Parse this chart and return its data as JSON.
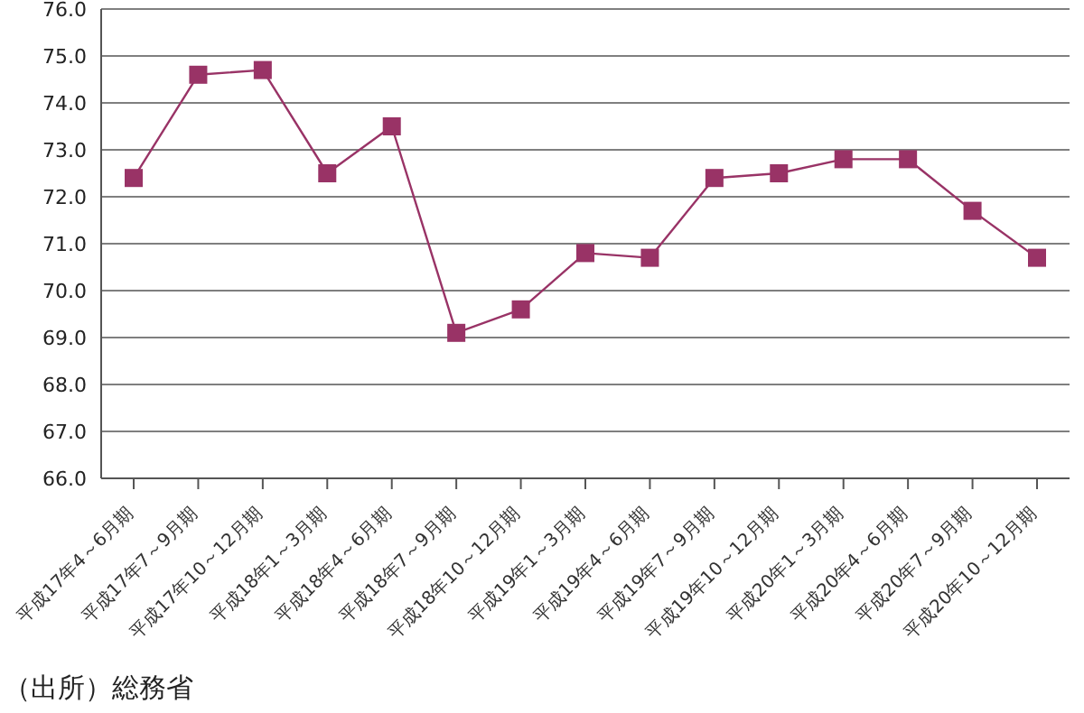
{
  "chart_data": {
    "type": "line",
    "categories": [
      "平成17年4～6月期",
      "平成17年7～9月期",
      "平成17年10～12月期",
      "平成18年1～3月期",
      "平成18年4～6月期",
      "平成18年7～9月期",
      "平成18年10～12月期",
      "平成19年1～3月期",
      "平成19年4～6月期",
      "平成19年7～9月期",
      "平成19年10～12月期",
      "平成20年1～3月期",
      "平成20年4～6月期",
      "平成20年7～9月期",
      "平成20年10～12月期"
    ],
    "series": [
      {
        "color": "#993366",
        "values": [
          72.4,
          74.6,
          74.7,
          72.5,
          73.5,
          69.1,
          69.6,
          70.8,
          70.7,
          72.4,
          72.5,
          72.8,
          72.8,
          71.7,
          70.7
        ]
      }
    ],
    "ylim": [
      66,
      76
    ],
    "yticks": [
      {
        "value": 66,
        "label": "66.0"
      },
      {
        "value": 67,
        "label": "67.0"
      },
      {
        "value": 68,
        "label": "68.0"
      },
      {
        "value": 69,
        "label": "69.0"
      },
      {
        "value": 70,
        "label": "70.0"
      },
      {
        "value": 71,
        "label": "71.0"
      },
      {
        "value": 72,
        "label": "72.0"
      },
      {
        "value": 73,
        "label": "73.0"
      },
      {
        "value": 74,
        "label": "74.0"
      },
      {
        "value": 75,
        "label": "75.0"
      },
      {
        "value": 76,
        "label": "76.0"
      }
    ],
    "grid": "y",
    "marker": "square",
    "line_style": "solid",
    "annotations": [
      "（出所）総務省"
    ]
  }
}
